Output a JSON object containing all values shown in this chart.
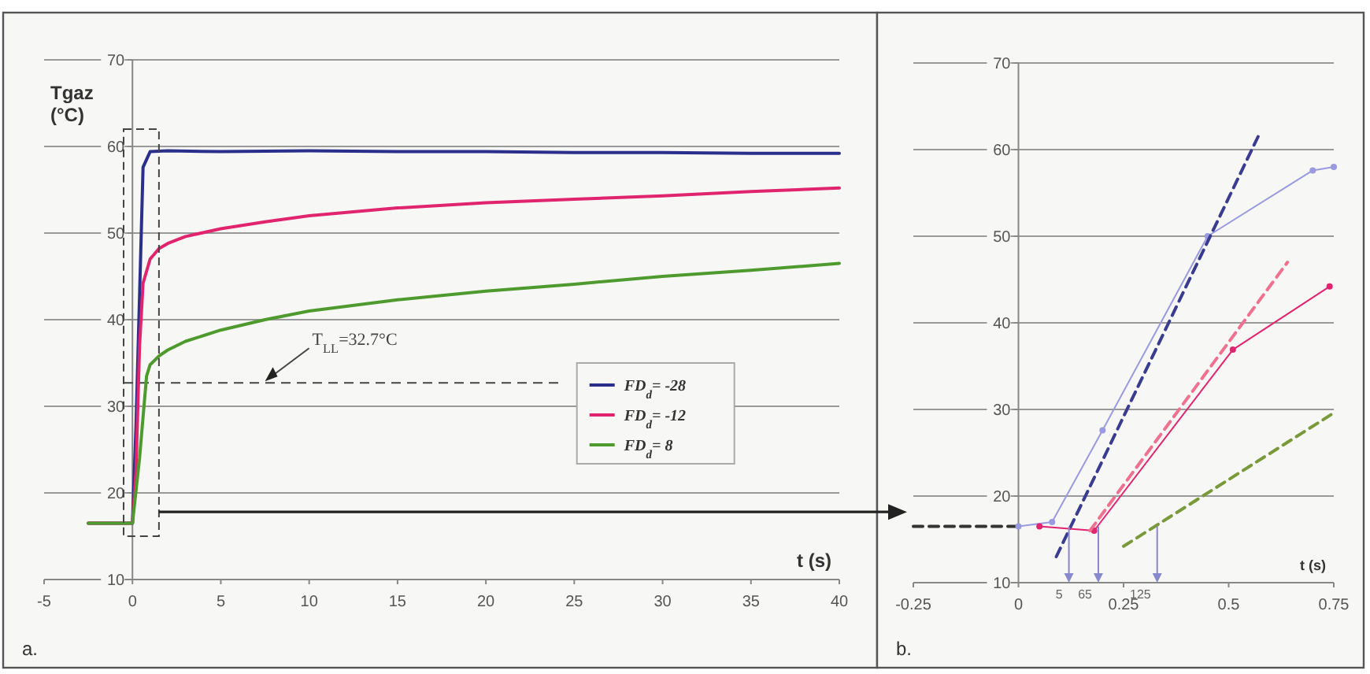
{
  "chart_data": [
    {
      "type": "line",
      "xlabel": "t (s)",
      "ylabel": "Tgaz (°C)",
      "annotations": [
        "a."
      ],
      "xlim": [
        -5,
        40
      ],
      "xticks": [
        -5,
        0,
        5,
        10,
        15,
        20,
        25,
        30,
        35,
        40
      ],
      "ylim": [
        10,
        70
      ],
      "yticks": [
        10,
        20,
        30,
        40,
        50,
        60,
        70
      ],
      "grid": "y",
      "legend": "bottom right",
      "ref_lines": [
        {
          "axis": "y",
          "value": 32.7,
          "label": "T$_{LL}$=32.7°C",
          "color": "#444444",
          "line_style": "dashed"
        }
      ],
      "series": [
        {
          "name": "FD$_{d}$= -28",
          "color": "#2b2f8c",
          "x": [
            -2.5,
            0,
            0.2,
            0.6,
            1,
            2,
            5,
            10,
            15,
            20,
            25,
            30,
            35,
            40
          ],
          "values": [
            16.5,
            16.5,
            27.6,
            57.6,
            59.4,
            59.5,
            59.4,
            59.5,
            59.4,
            59.4,
            59.3,
            59.3,
            59.2,
            59.2
          ]
        },
        {
          "name": "FD$_{d}$= -12",
          "color": "#e0246e",
          "x": [
            -2.5,
            0,
            0.2,
            0.4,
            0.6,
            1,
            1.5,
            2,
            3,
            5,
            7.5,
            10,
            15,
            20,
            25,
            30,
            35,
            40
          ],
          "values": [
            16.5,
            16.5,
            22.4,
            36.9,
            44.2,
            47,
            48.2,
            48.8,
            49.6,
            50.5,
            51.3,
            52,
            52.9,
            53.5,
            53.9,
            54.3,
            54.8,
            55.2
          ]
        },
        {
          "name": "FD$_{d}$= 8",
          "color": "#4f9a2e",
          "x": [
            -2.5,
            0,
            0.4,
            0.8,
            1,
            1.5,
            2,
            3,
            5,
            7.5,
            10,
            15,
            20,
            25,
            30,
            35,
            40
          ],
          "values": [
            16.5,
            16.5,
            24,
            33.5,
            34.8,
            35.8,
            36.5,
            37.5,
            38.8,
            40,
            41,
            42.3,
            43.3,
            44.1,
            45,
            45.7,
            46.5
          ]
        }
      ]
    },
    {
      "type": "line",
      "xlabel": "t (s)",
      "annotations": [
        "b.",
        {
          "text": "5",
          "x": 0.12,
          "y": 16.5
        },
        {
          "text": "65",
          "x": 0.19,
          "y": 16.5
        },
        {
          "text": "125",
          "x": 0.33,
          "y": 16.5
        }
      ],
      "xlim": [
        -0.25,
        0.75
      ],
      "xticks": [
        -0.25,
        0,
        0.25,
        0.5,
        0.75
      ],
      "ylim": [
        10,
        70
      ],
      "yticks": [
        10,
        20,
        30,
        40,
        50,
        60,
        70
      ],
      "grid": "y",
      "series": [
        {
          "color": "#333333",
          "line_style": "dashed",
          "x": [
            -0.25,
            -0.2,
            -0.15,
            -0.1,
            0
          ],
          "values": [
            16.5,
            16.5,
            16.5,
            16.5,
            16.5
          ]
        },
        {
          "color": "#9a9ae0",
          "marker": "circle",
          "x": [
            0,
            0.08,
            0.2,
            0.45,
            0.7,
            0.75
          ],
          "values": [
            16.5,
            17,
            27.6,
            50,
            57.6,
            58
          ]
        },
        {
          "color": "#3a3d8f",
          "line_style": "dashed",
          "x": [
            0.09,
            0.57
          ],
          "values": [
            13,
            61.5
          ]
        },
        {
          "color": "#e0246e",
          "marker": "circle",
          "x": [
            0.05,
            0.18,
            0.51,
            0.74
          ],
          "values": [
            16.5,
            16,
            36.9,
            44.2
          ]
        },
        {
          "color": "#f07090",
          "line_style": "dashed",
          "x": [
            0.17,
            0.64
          ],
          "values": [
            16,
            47
          ]
        },
        {
          "color": "#7a9a3a",
          "line_style": "dashed",
          "x": [
            0.25,
            0.75
          ],
          "values": [
            14.2,
            29.6
          ]
        }
      ]
    }
  ]
}
